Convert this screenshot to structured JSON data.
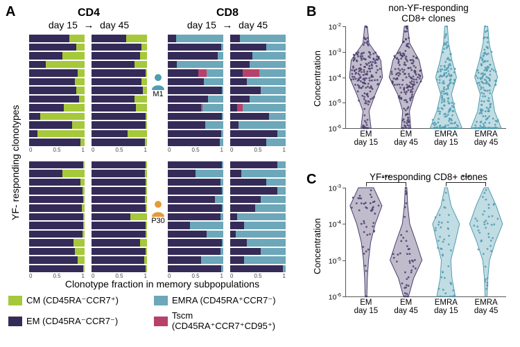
{
  "colors": {
    "CM": "#a6c83b",
    "EM": "#352b58",
    "EMRA": "#6ca7ba",
    "Tscm": "#b7416b",
    "M1_icon": "#4f9db0",
    "P30_icon": "#e59a3c",
    "violinB_EM": "#4a3e6c",
    "violinB_EMRA": "#4e9bb0",
    "violinC_EM": "#4a3e6c",
    "violinC_EMRA": "#4e9bb0",
    "bg": "#ffffff",
    "axis": "#555555"
  },
  "panelA": {
    "label": "A",
    "cols": [
      "CD4",
      "CD8"
    ],
    "days": [
      "day 15",
      "day 45"
    ],
    "ylabel": "YF- responding clonotypes",
    "xlabel": "Clonotype fraction in memory subpopulations",
    "persons": [
      {
        "id": "M1",
        "color_key": "M1_icon"
      },
      {
        "id": "P30",
        "color_key": "P30_icon"
      }
    ],
    "xaxis_ticks": [
      "0",
      "0.5",
      "1"
    ],
    "data": {
      "M1": {
        "CD4": {
          "day15": [
            {
              "EM": 0.72,
              "CM": 0.28
            },
            {
              "EM": 0.85,
              "CM": 0.15
            },
            {
              "EM": 0.6,
              "CM": 0.4
            },
            {
              "EM": 0.3,
              "CM": 0.7
            },
            {
              "EM": 0.88,
              "CM": 0.12
            },
            {
              "EM": 0.82,
              "CM": 0.18
            },
            {
              "EM": 0.85,
              "CM": 0.15
            },
            {
              "EM": 0.9,
              "CM": 0.1
            },
            {
              "EM": 0.62,
              "CM": 0.38
            },
            {
              "EM": 0.2,
              "CM": 0.8
            },
            {
              "EM": 0.78,
              "CM": 0.22
            },
            {
              "EM": 0.15,
              "CM": 0.85
            },
            {
              "EM": 0.92,
              "CM": 0.08
            }
          ],
          "day45": [
            {
              "EM": 0.62,
              "CM": 0.38
            },
            {
              "EM": 0.9,
              "CM": 0.1
            },
            {
              "EM": 0.88,
              "CM": 0.12
            },
            {
              "EM": 0.78,
              "CM": 0.22
            },
            {
              "EM": 0.97,
              "CM": 0.03
            },
            {
              "EM": 0.9,
              "CM": 0.1
            },
            {
              "EM": 0.93,
              "CM": 0.07
            },
            {
              "EM": 0.78,
              "CM": 0.22
            },
            {
              "EM": 0.8,
              "CM": 0.2
            },
            {
              "EM": 0.98,
              "CM": 0.02
            },
            {
              "EM": 0.98,
              "CM": 0.02
            },
            {
              "EM": 0.65,
              "CM": 0.35
            },
            {
              "EM": 0.96,
              "CM": 0.04
            }
          ]
        },
        "CD8": {
          "day15": [
            {
              "EM": 0.15,
              "EMRA": 0.85
            },
            {
              "EM": 0.96,
              "EMRA": 0.04
            },
            {
              "EM": 0.9,
              "EMRA": 0.1
            },
            {
              "EM": 0.16,
              "EMRA": 0.84
            },
            {
              "EM": 0.55,
              "Tscm": 0.15,
              "EMRA": 0.3
            },
            {
              "EM": 0.65,
              "EMRA": 0.35
            },
            {
              "EM": 0.98,
              "EMRA": 0.02
            },
            {
              "EM": 0.72,
              "EMRA": 0.28
            },
            {
              "EM": 0.6,
              "EMRA": 0.38,
              "Tscm": 0.02
            },
            {
              "EM": 0.97,
              "EMRA": 0.03
            },
            {
              "EM": 0.68,
              "EMRA": 0.32
            },
            {
              "EM": 0.96,
              "EMRA": 0.04
            },
            {
              "EM": 0.94,
              "EMRA": 0.06
            }
          ],
          "day45": [
            {
              "EM": 0.18,
              "EMRA": 0.82
            },
            {
              "EM": 0.65,
              "EMRA": 0.35
            },
            {
              "EM": 0.4,
              "EMRA": 0.6
            },
            {
              "EM": 0.35,
              "EMRA": 0.65
            },
            {
              "EM": 0.22,
              "Tscm": 0.3,
              "EMRA": 0.48
            },
            {
              "EM": 0.3,
              "EMRA": 0.7
            },
            {
              "EM": 0.55,
              "EMRA": 0.45
            },
            {
              "EM": 0.35,
              "EMRA": 0.65
            },
            {
              "EM": 0.12,
              "Tscm": 0.1,
              "EMRA": 0.78
            },
            {
              "EM": 0.7,
              "EMRA": 0.3
            },
            {
              "EM": 0.15,
              "EMRA": 0.85
            },
            {
              "EM": 0.85,
              "EMRA": 0.15
            },
            {
              "EM": 0.65,
              "EMRA": 0.35
            }
          ]
        }
      },
      "P30": {
        "CD4": {
          "day15": [
            {
              "EM": 0.97,
              "CM": 0.03
            },
            {
              "EM": 0.6,
              "CM": 0.4
            },
            {
              "EM": 0.92,
              "CM": 0.08
            },
            {
              "EM": 0.96,
              "CM": 0.04
            },
            {
              "EM": 0.97,
              "CM": 0.03
            },
            {
              "EM": 0.95,
              "CM": 0.05
            },
            {
              "EM": 0.97,
              "CM": 0.03
            },
            {
              "EM": 0.98,
              "CM": 0.02
            },
            {
              "EM": 0.96,
              "CM": 0.04
            },
            {
              "EM": 0.8,
              "CM": 0.2
            },
            {
              "EM": 0.82,
              "CM": 0.18
            },
            {
              "EM": 0.88,
              "CM": 0.12
            },
            {
              "EM": 0.98,
              "CM": 0.02
            }
          ],
          "day45": [
            {
              "EM": 0.98,
              "CM": 0.02
            },
            {
              "EM": 0.96,
              "CM": 0.04
            },
            {
              "EM": 0.98,
              "CM": 0.02
            },
            {
              "EM": 0.97,
              "CM": 0.03
            },
            {
              "EM": 0.96,
              "CM": 0.04
            },
            {
              "EM": 0.98,
              "CM": 0.02
            },
            {
              "EM": 0.7,
              "CM": 0.3
            },
            {
              "EM": 0.97,
              "CM": 0.03
            },
            {
              "EM": 0.97,
              "CM": 0.03
            },
            {
              "EM": 0.88,
              "CM": 0.12
            },
            {
              "EM": 0.97,
              "CM": 0.03
            },
            {
              "EM": 0.95,
              "CM": 0.05
            },
            {
              "EM": 0.98,
              "CM": 0.02
            }
          ]
        },
        "CD8": {
          "day15": [
            {
              "EM": 0.97,
              "EMRA": 0.03
            },
            {
              "EM": 0.5,
              "EMRA": 0.5
            },
            {
              "EM": 0.95,
              "EMRA": 0.05
            },
            {
              "EM": 0.97,
              "EMRA": 0.03
            },
            {
              "EM": 0.85,
              "EMRA": 0.15
            },
            {
              "EM": 0.97,
              "EMRA": 0.03
            },
            {
              "EM": 0.95,
              "EMRA": 0.05
            },
            {
              "EM": 0.4,
              "EMRA": 0.6
            },
            {
              "EM": 0.7,
              "EMRA": 0.3
            },
            {
              "EM": 0.97,
              "EMRA": 0.03
            },
            {
              "EM": 0.95,
              "EMRA": 0.05
            },
            {
              "EM": 0.6,
              "EMRA": 0.4
            },
            {
              "EM": 0.96,
              "EMRA": 0.04
            }
          ],
          "day45": [
            {
              "EM": 0.85,
              "EMRA": 0.15
            },
            {
              "EM": 0.2,
              "EMRA": 0.8
            },
            {
              "EM": 0.65,
              "EMRA": 0.35
            },
            {
              "EM": 0.85,
              "EMRA": 0.15
            },
            {
              "EM": 0.55,
              "EMRA": 0.45
            },
            {
              "EM": 0.45,
              "EMRA": 0.55
            },
            {
              "EM": 0.12,
              "EMRA": 0.88
            },
            {
              "EM": 0.25,
              "EMRA": 0.75
            },
            {
              "EM": 0.1,
              "EMRA": 0.9
            },
            {
              "EM": 0.3,
              "EMRA": 0.7
            },
            {
              "EM": 0.55,
              "EMRA": 0.45
            },
            {
              "EM": 0.25,
              "EMRA": 0.75
            },
            {
              "EM": 0.95,
              "EMRA": 0.05
            }
          ]
        }
      }
    }
  },
  "legend": {
    "items": [
      {
        "key": "CM",
        "label": "CM (CD45RA⁻CCR7⁺)"
      },
      {
        "key": "EMRA",
        "label": "EMRA (CD45RA⁺CCR7⁻)"
      },
      {
        "key": "EM",
        "label": "EM (CD45RA⁻CCR7⁻)"
      },
      {
        "key": "Tscm",
        "label": "Tscm (CD45RA⁺CCR7⁺CD95⁺)"
      }
    ]
  },
  "panelB": {
    "label": "B",
    "title": "non-YF-responding\nCD8+ clones",
    "ylabel": "Concentration",
    "y_exponents": [
      -2,
      -3,
      -4,
      -5,
      -6
    ],
    "categories": [
      {
        "label": "EM\nday 15",
        "color_key": "violinB_EM"
      },
      {
        "label": "EM\nday 45",
        "color_key": "violinB_EM"
      },
      {
        "label": "EMRA\nday 15",
        "color_key": "violinB_EMRA"
      },
      {
        "label": "EMRA\nday 45",
        "color_key": "violinB_EMRA"
      }
    ],
    "violin_shapes": [
      [
        0.08,
        0.18,
        0.88,
        0.98,
        0.55,
        0.18,
        0.3
      ],
      [
        0.1,
        0.22,
        0.78,
        1.0,
        0.5,
        0.2,
        0.28
      ],
      [
        0.08,
        0.15,
        0.35,
        0.62,
        0.32,
        0.55,
        0.95
      ],
      [
        0.1,
        0.18,
        0.4,
        0.68,
        0.35,
        0.5,
        0.9
      ]
    ],
    "n_points": 180,
    "seed": 101
  },
  "panelC": {
    "label": "C",
    "title": "YF-responding CD8+ clones",
    "ylabel": "Concentration",
    "y_exponents": [
      -3,
      -4,
      -5,
      -6
    ],
    "categories": [
      {
        "label": "EM\nday 15",
        "color_key": "violinC_EM"
      },
      {
        "label": "EM\nday 45",
        "color_key": "violinC_EM"
      },
      {
        "label": "EMRA\nday 15",
        "color_key": "violinC_EMRA"
      },
      {
        "label": "EMRA\nday 45",
        "color_key": "violinC_EMRA"
      }
    ],
    "violin_shapes": [
      [
        0.45,
        0.95,
        0.55,
        0.28,
        0.15,
        0.08,
        0.05
      ],
      [
        0.05,
        0.1,
        0.22,
        0.6,
        0.95,
        0.45,
        0.15
      ],
      [
        0.08,
        0.3,
        0.8,
        0.55,
        0.28,
        0.35,
        0.55
      ],
      [
        0.12,
        0.6,
        0.98,
        0.55,
        0.2,
        0.1,
        0.06
      ]
    ],
    "n_points": 45,
    "seed": 303,
    "sig": [
      {
        "g1": 0,
        "g2": 1,
        "label": "***"
      },
      {
        "g1": 2,
        "g2": 3,
        "label": "***"
      }
    ]
  }
}
